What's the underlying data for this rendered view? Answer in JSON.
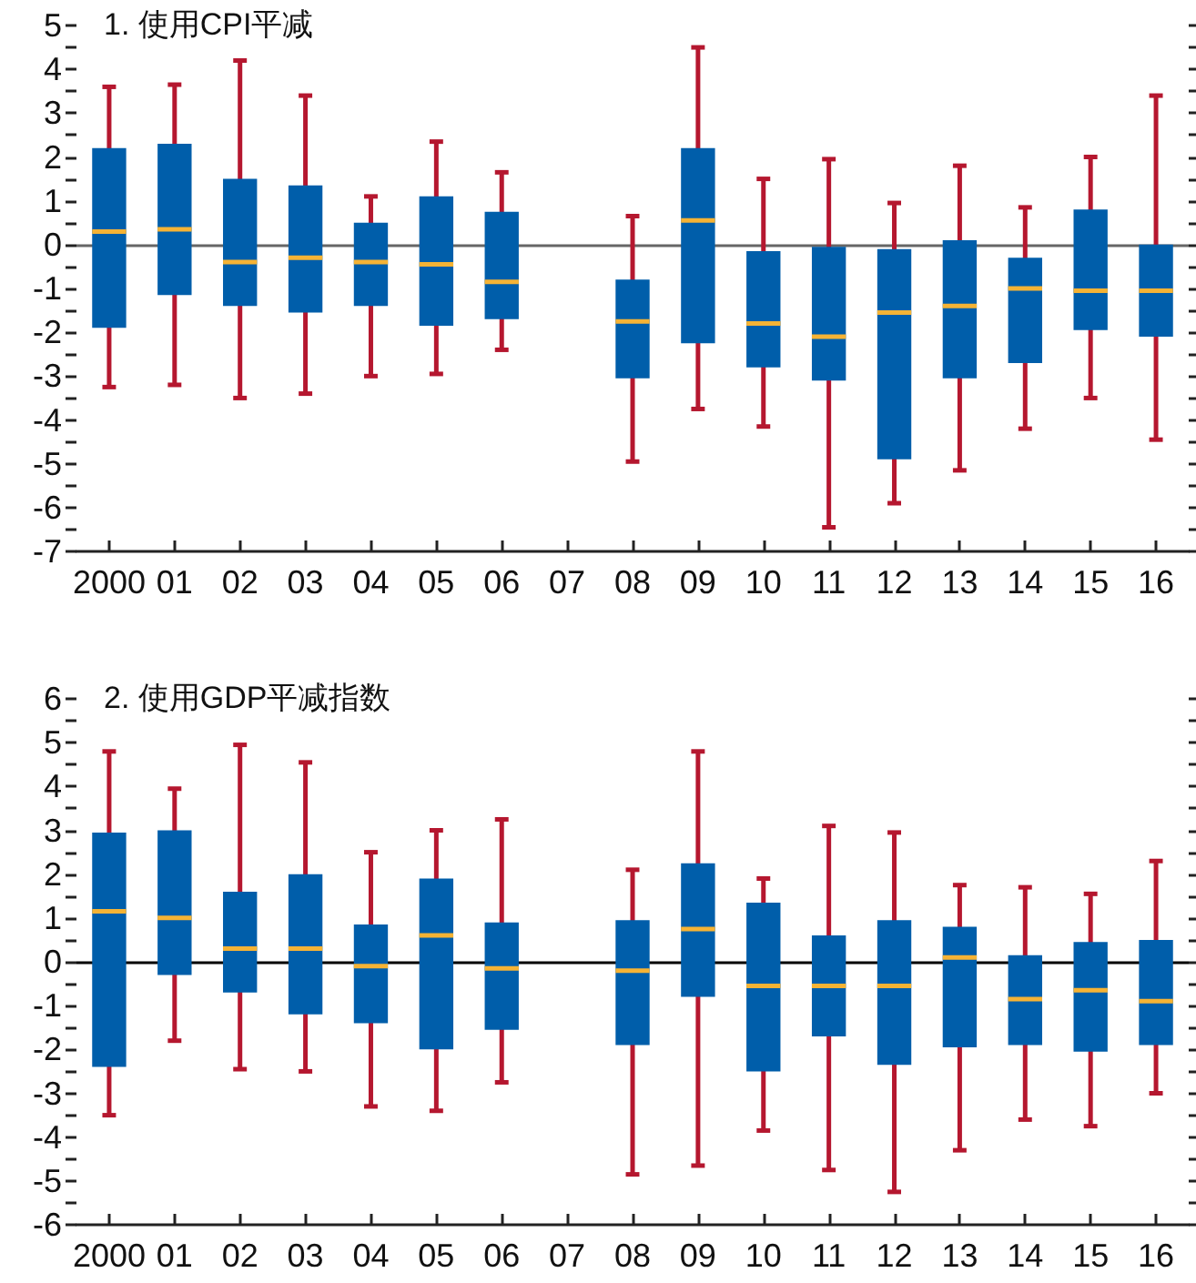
{
  "chart_data": [
    {
      "type": "box",
      "title": "1. 使用CPI平减",
      "categories": [
        "2000",
        "01",
        "02",
        "03",
        "04",
        "05",
        "06",
        "07",
        "08",
        "09",
        "10",
        "11",
        "12",
        "13",
        "14",
        "15",
        "16"
      ],
      "series": [
        {
          "color": "#005eaa",
          "boxes": [
            {
              "low": -3.25,
              "q1": -1.9,
              "median": 0.3,
              "q3": 2.2,
              "high": 3.6
            },
            {
              "low": -3.2,
              "q1": -1.15,
              "median": 0.35,
              "q3": 2.3,
              "high": 3.65
            },
            {
              "low": -3.5,
              "q1": -1.4,
              "median": -0.4,
              "q3": 1.5,
              "high": 4.2
            },
            {
              "low": -3.4,
              "q1": -1.55,
              "median": -0.3,
              "q3": 1.35,
              "high": 3.4
            },
            {
              "low": -3.0,
              "q1": -1.4,
              "median": -0.4,
              "q3": 0.5,
              "high": 1.1
            },
            {
              "low": -2.95,
              "q1": -1.85,
              "median": -0.45,
              "q3": 1.1,
              "high": 2.35
            },
            {
              "low": -2.4,
              "q1": -1.7,
              "median": -0.85,
              "q3": 0.75,
              "high": 1.65
            },
            null,
            {
              "low": -4.95,
              "q1": -3.05,
              "median": -1.75,
              "q3": -0.8,
              "high": 0.65
            },
            {
              "low": -3.75,
              "q1": -2.25,
              "median": 0.55,
              "q3": 2.2,
              "high": 4.5
            },
            {
              "low": -4.15,
              "q1": -2.8,
              "median": -1.8,
              "q3": -0.15,
              "high": 1.5
            },
            {
              "low": -6.45,
              "q1": -3.1,
              "median": -2.1,
              "q3": -0.05,
              "high": 1.95
            },
            {
              "low": -5.9,
              "q1": -4.9,
              "median": -1.55,
              "q3": -0.1,
              "high": 0.95
            },
            {
              "low": -5.15,
              "q1": -3.05,
              "median": -1.4,
              "q3": 0.1,
              "high": 1.8
            },
            {
              "low": -4.2,
              "q1": -2.7,
              "median": -1.0,
              "q3": -0.3,
              "high": 0.85
            },
            {
              "low": -3.5,
              "q1": -1.95,
              "median": -1.05,
              "q3": 0.8,
              "high": 2.0
            },
            {
              "low": -4.45,
              "q1": -2.1,
              "median": -1.05,
              "q3": 0.0,
              "high": 3.4
            }
          ]
        }
      ],
      "ylim": [
        -7,
        5
      ],
      "yticks": [
        -7,
        {
          "value": -6.5,
          "label": null
        },
        -6,
        {
          "value": -5.5,
          "label": null
        },
        -5,
        {
          "value": -4.5,
          "label": null
        },
        -4,
        {
          "value": -3.5,
          "label": null
        },
        -3,
        {
          "value": -2.5,
          "label": null
        },
        -2,
        {
          "value": -1.5,
          "label": null
        },
        -1,
        {
          "value": -0.5,
          "label": null
        },
        0,
        {
          "value": 0.5,
          "label": null
        },
        1,
        {
          "value": 1.5,
          "label": null
        },
        2,
        {
          "value": 2.5,
          "label": null
        },
        3,
        {
          "value": 3.5,
          "label": null
        },
        4,
        {
          "value": 4.5,
          "label": null
        },
        5
      ],
      "ref_lines": [
        {
          "axis": "y",
          "value": 0,
          "color": "#666666"
        }
      ]
    },
    {
      "type": "box",
      "title": "2. 使用GDP平减指数",
      "categories": [
        "2000",
        "01",
        "02",
        "03",
        "04",
        "05",
        "06",
        "07",
        "08",
        "09",
        "10",
        "11",
        "12",
        "13",
        "14",
        "15",
        "16"
      ],
      "series": [
        {
          "color": "#005eaa",
          "boxes": [
            {
              "low": -3.5,
              "q1": -2.4,
              "median": 1.15,
              "q3": 2.95,
              "high": 4.8
            },
            {
              "low": -1.8,
              "q1": -0.3,
              "median": 1.0,
              "q3": 3.0,
              "high": 3.95
            },
            {
              "low": -2.45,
              "q1": -0.7,
              "median": 0.3,
              "q3": 1.6,
              "high": 4.95
            },
            {
              "low": -2.5,
              "q1": -1.2,
              "median": 0.3,
              "q3": 2.0,
              "high": 4.55
            },
            {
              "low": -3.3,
              "q1": -1.4,
              "median": -0.1,
              "q3": 0.85,
              "high": 2.5
            },
            {
              "low": -3.4,
              "q1": -2.0,
              "median": 0.6,
              "q3": 1.9,
              "high": 3.0
            },
            {
              "low": -2.75,
              "q1": -1.55,
              "median": -0.15,
              "q3": 0.9,
              "high": 3.25
            },
            null,
            {
              "low": -4.85,
              "q1": -1.9,
              "median": -0.2,
              "q3": 0.95,
              "high": 2.1
            },
            {
              "low": -4.65,
              "q1": -0.8,
              "median": 0.75,
              "q3": 2.25,
              "high": 4.8
            },
            {
              "low": -3.85,
              "q1": -2.5,
              "median": -0.55,
              "q3": 1.35,
              "high": 1.9
            },
            {
              "low": -4.75,
              "q1": -1.7,
              "median": -0.55,
              "q3": 0.6,
              "high": 3.1
            },
            {
              "low": -5.25,
              "q1": -2.35,
              "median": -0.55,
              "q3": 0.95,
              "high": 2.95
            },
            {
              "low": -4.3,
              "q1": -1.95,
              "median": 0.1,
              "q3": 0.8,
              "high": 1.75
            },
            {
              "low": -3.6,
              "q1": -1.9,
              "median": -0.85,
              "q3": 0.15,
              "high": 1.7
            },
            {
              "low": -3.75,
              "q1": -2.05,
              "median": -0.65,
              "q3": 0.45,
              "high": 1.55
            },
            {
              "low": -3.0,
              "q1": -1.9,
              "median": -0.9,
              "q3": 0.5,
              "high": 2.3
            }
          ]
        }
      ],
      "ylim": [
        -6,
        6
      ],
      "yticks": [
        -6,
        {
          "value": -5.5,
          "label": null
        },
        -5,
        {
          "value": -4.5,
          "label": null
        },
        -4,
        {
          "value": -3.5,
          "label": null
        },
        -3,
        {
          "value": -2.5,
          "label": null
        },
        -2,
        {
          "value": -1.5,
          "label": null
        },
        -1,
        {
          "value": -0.5,
          "label": null
        },
        0,
        {
          "value": 0.5,
          "label": null
        },
        1,
        {
          "value": 1.5,
          "label": null
        },
        2,
        {
          "value": 2.5,
          "label": null
        },
        3,
        {
          "value": 3.5,
          "label": null
        },
        4,
        {
          "value": 4.5,
          "label": null
        },
        5,
        {
          "value": 5.5,
          "label": null
        },
        6
      ],
      "ref_lines": [
        {
          "axis": "y",
          "value": 0,
          "color": "#000000"
        }
      ]
    }
  ]
}
